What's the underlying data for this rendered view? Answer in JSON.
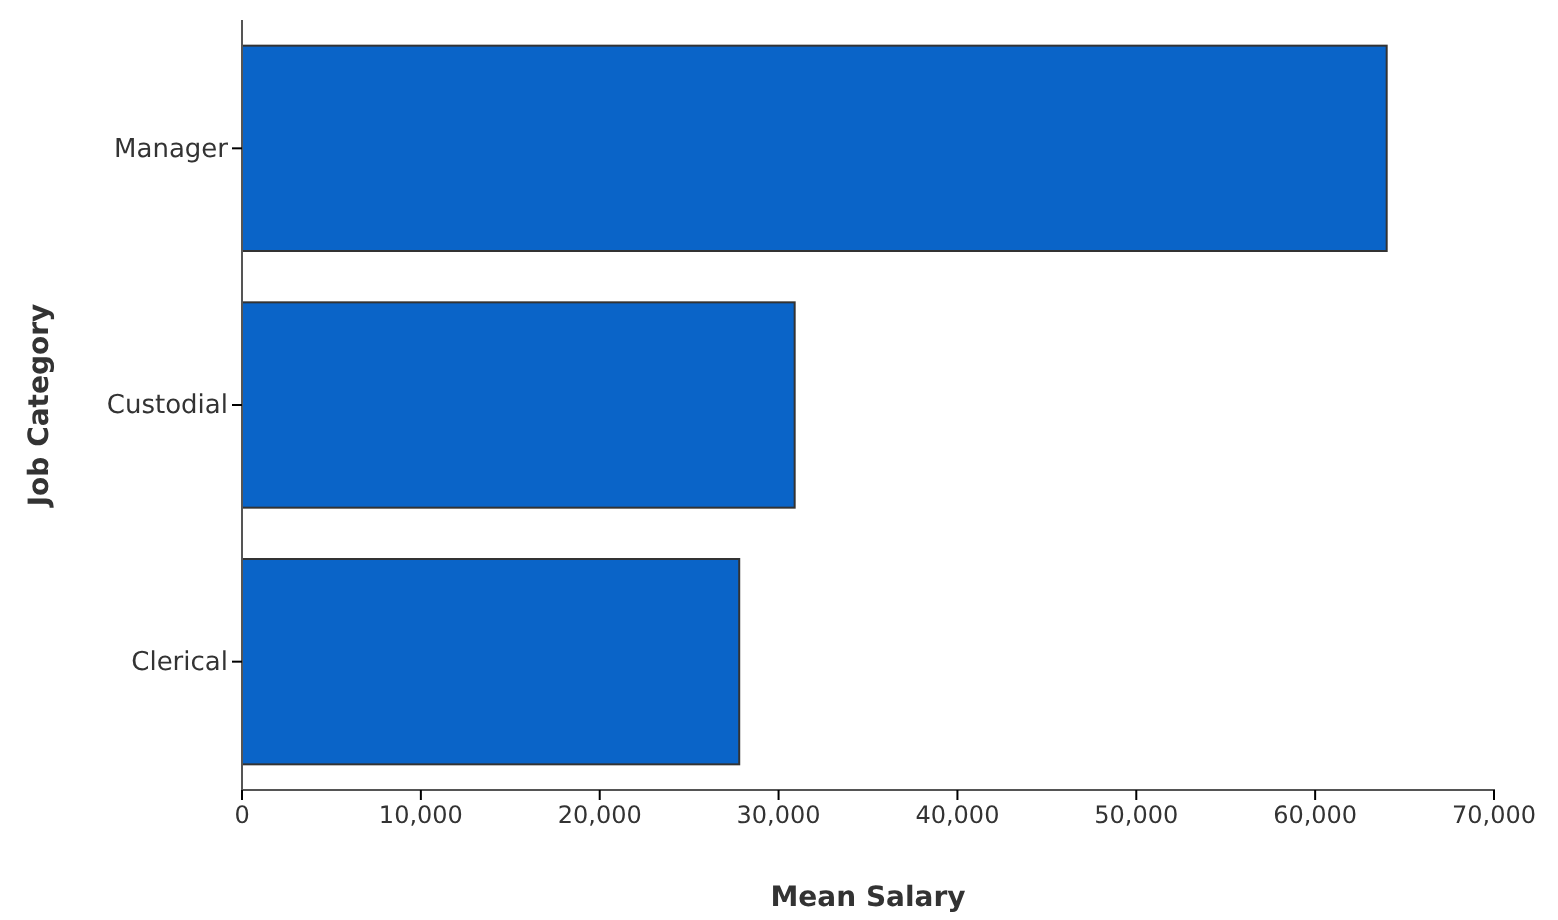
{
  "chart_data": {
    "type": "bar",
    "orientation": "horizontal",
    "categories": [
      "Manager",
      "Custodial",
      "Clerical"
    ],
    "values": [
      64000,
      30900,
      27800
    ],
    "color": "#0a64c8",
    "xlabel": "Mean Salary",
    "ylabel": "Job Category",
    "xlim": [
      0,
      70000
    ],
    "xticks": [
      {
        "value": 0,
        "label": "0"
      },
      {
        "value": 10000,
        "label": "10,000"
      },
      {
        "value": 20000,
        "label": "20,000"
      },
      {
        "value": 30000,
        "label": "30,000"
      },
      {
        "value": 40000,
        "label": "40,000"
      },
      {
        "value": 50000,
        "label": "50,000"
      },
      {
        "value": 60000,
        "label": "60,000"
      },
      {
        "value": 70000,
        "label": "70,000"
      }
    ],
    "grid": false
  }
}
